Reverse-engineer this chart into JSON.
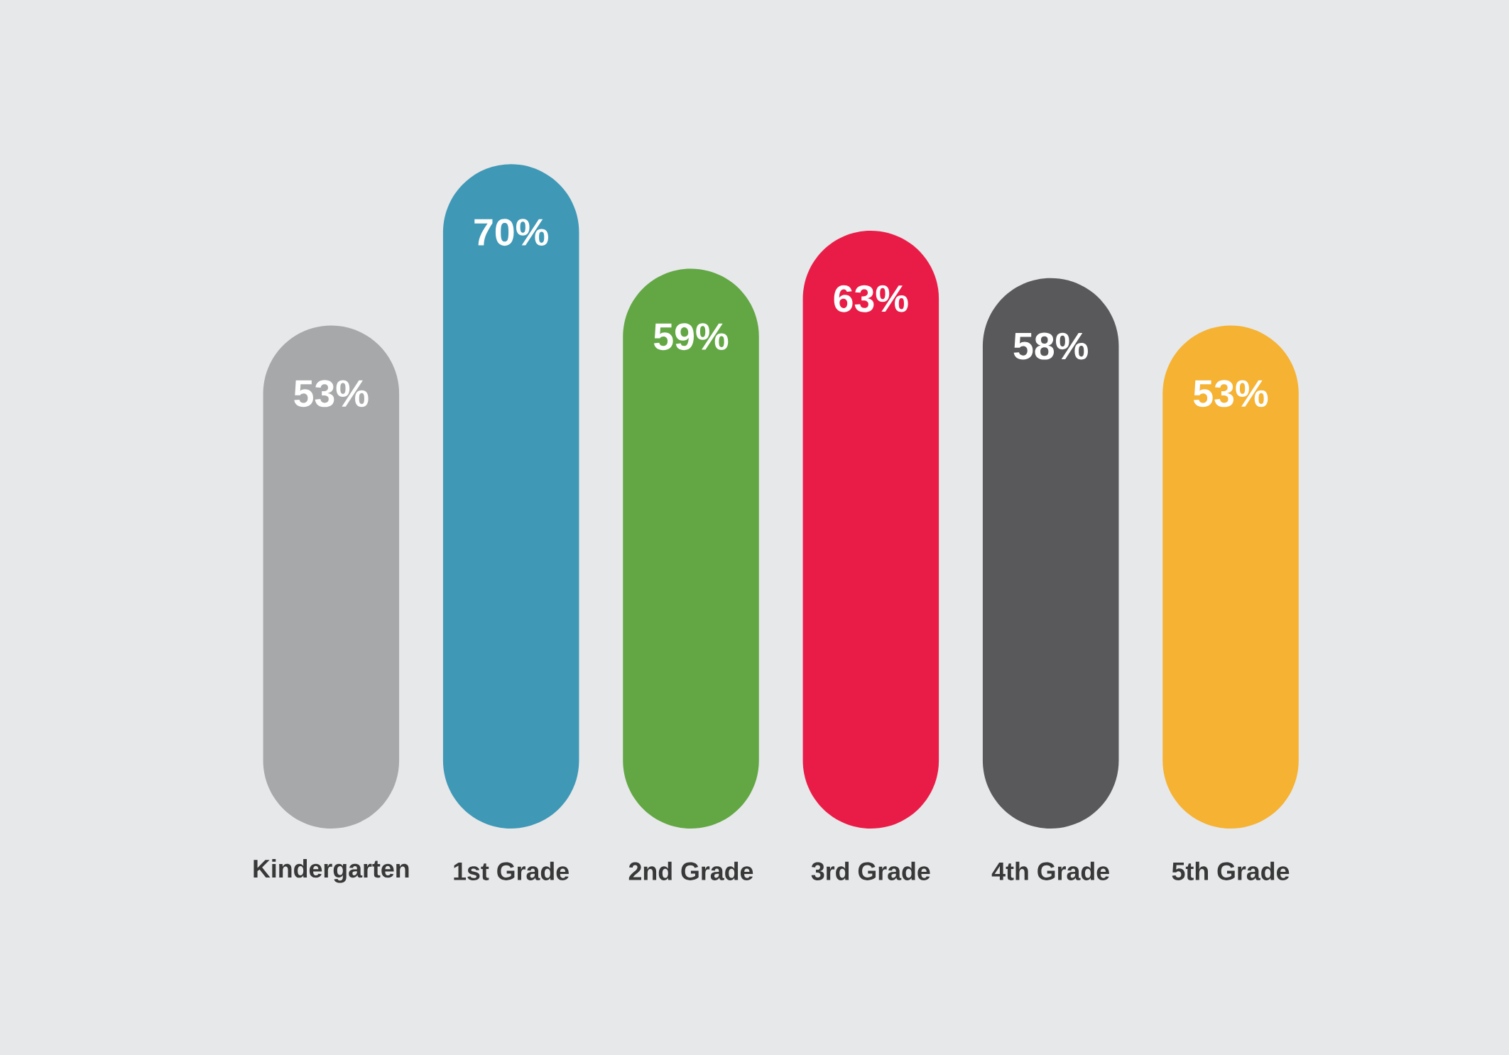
{
  "chart_data": {
    "type": "bar",
    "categories": [
      "Kindergarten",
      "1st Grade",
      "2nd Grade",
      "3rd Grade",
      "4th Grade",
      "5th Grade"
    ],
    "values": [
      53,
      70,
      59,
      63,
      58,
      53
    ],
    "value_labels": [
      "53%",
      "70%",
      "59%",
      "63%",
      "58%",
      "53%"
    ],
    "colors": [
      "#a7a8aa",
      "#3f98b6",
      "#62a744",
      "#e91c47",
      "#59595b",
      "#f5b233"
    ]
  }
}
